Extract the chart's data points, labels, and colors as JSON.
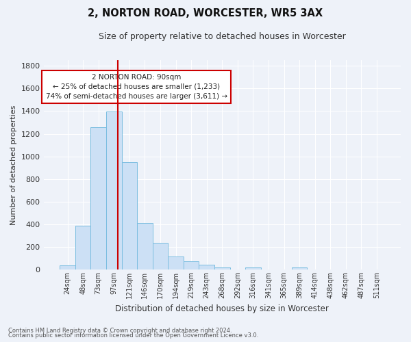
{
  "title1": "2, NORTON ROAD, WORCESTER, WR5 3AX",
  "title2": "Size of property relative to detached houses in Worcester",
  "xlabel": "Distribution of detached houses by size in Worcester",
  "ylabel": "Number of detached properties",
  "footnote1": "Contains HM Land Registry data © Crown copyright and database right 2024.",
  "footnote2": "Contains public sector information licensed under the Open Government Licence v3.0.",
  "bar_labels": [
    "24sqm",
    "48sqm",
    "73sqm",
    "97sqm",
    "121sqm",
    "146sqm",
    "170sqm",
    "194sqm",
    "219sqm",
    "243sqm",
    "268sqm",
    "292sqm",
    "316sqm",
    "341sqm",
    "365sqm",
    "389sqm",
    "414sqm",
    "438sqm",
    "462sqm",
    "487sqm",
    "511sqm"
  ],
  "bar_values": [
    35,
    390,
    1260,
    1395,
    950,
    410,
    235,
    115,
    70,
    45,
    20,
    0,
    20,
    0,
    0,
    20,
    0,
    0,
    0,
    0,
    0
  ],
  "bar_color": "#cce0f5",
  "bar_edge_color": "#7abde0",
  "vline_color": "#cc0000",
  "vline_x": 3.25,
  "annotation_text": "2 NORTON ROAD: 90sqm\n← 25% of detached houses are smaller (1,233)\n74% of semi-detached houses are larger (3,611) →",
  "annotation_box_color": "#ffffff",
  "annotation_box_edge": "#cc0000",
  "bg_color": "#eef2f9",
  "grid_color": "#ffffff",
  "ylim": [
    0,
    1850
  ],
  "yticks": [
    0,
    200,
    400,
    600,
    800,
    1000,
    1200,
    1400,
    1600,
    1800
  ]
}
